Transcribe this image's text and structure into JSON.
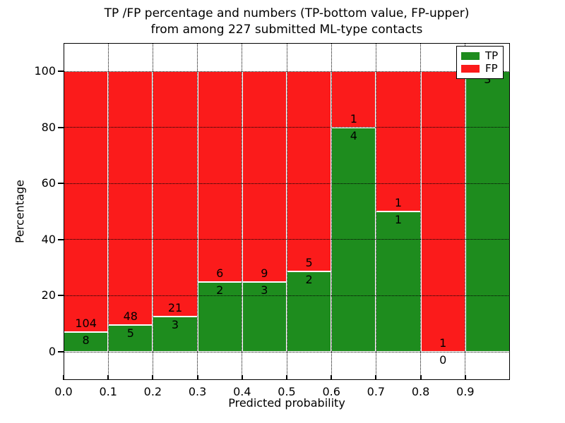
{
  "chart_data": {
    "type": "bar",
    "stacked": true,
    "normalized_to_percent": true,
    "title_lines": [
      "TP /FP percentage and numbers (TP-bottom value, FP-upper)",
      "from among 227 submitted ML-type contacts"
    ],
    "total_contacts": 227,
    "xlabel": "Predicted probability",
    "ylabel": "Percentage",
    "x_tick_labels": [
      "0.0",
      "0.1",
      "0.2",
      "0.3",
      "0.4",
      "0.5",
      "0.6",
      "0.7",
      "0.8",
      "0.9"
    ],
    "y_tick_values": [
      0,
      20,
      40,
      60,
      80,
      100
    ],
    "xlim": [
      0.0,
      1.0
    ],
    "ylim": [
      -10,
      110
    ],
    "bin_width": 0.1,
    "categories": [
      "0.0-0.1",
      "0.1-0.2",
      "0.2-0.3",
      "0.3-0.4",
      "0.4-0.5",
      "0.5-0.6",
      "0.6-0.7",
      "0.7-0.8",
      "0.8-0.9",
      "0.9-1.0"
    ],
    "series": [
      {
        "name": "TP",
        "color": "#1e8c1e",
        "counts": [
          8,
          5,
          3,
          2,
          3,
          2,
          4,
          1,
          0,
          3
        ]
      },
      {
        "name": "FP",
        "color": "#fb1b1b",
        "counts": [
          104,
          48,
          21,
          6,
          9,
          5,
          1,
          1,
          1,
          0
        ]
      }
    ],
    "tp_percent": [
      7.1,
      9.4,
      12.5,
      25.0,
      25.0,
      28.6,
      80.0,
      50.0,
      0.0,
      100.0
    ],
    "grid": {
      "style": "dotted",
      "color": "#000000",
      "on_top": true
    },
    "bar_edge_color": "#ffffff",
    "legend": {
      "position": "upper-right",
      "entries": [
        {
          "label": "TP",
          "color": "#1e8c1e"
        },
        {
          "label": "FP",
          "color": "#fb1b1b"
        }
      ]
    }
  }
}
